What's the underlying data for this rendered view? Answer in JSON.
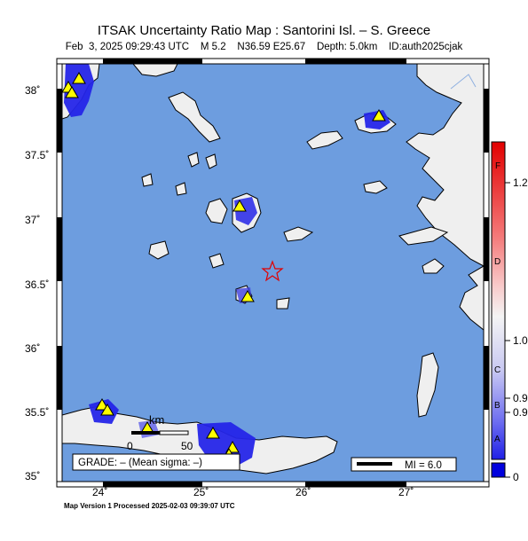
{
  "title": "ITSAK Uncertainty Ratio Map : Santorini Isl. – S. Greece",
  "subtitle": "Feb  3, 2025 09:29:43 UTC    M 5.2    N36.59 E25.67    Depth: 5.0km    ID:auth2025cjak",
  "footer": "Map Version 1 Processed 2025-02-03 09:39:07 UTC",
  "lat_ticks": [
    "38˚",
    "37.5˚",
    "37˚",
    "36.5˚",
    "36˚",
    "35.5˚",
    "35˚"
  ],
  "lon_ticks": [
    "24˚",
    "25˚",
    "26˚",
    "27˚"
  ],
  "grade_box": "GRADE: – (Mean sigma: –)",
  "mi_box": "MI = 6.0",
  "scale_bar": {
    "unit": "km",
    "start": "0",
    "end": "50"
  },
  "colorbar": {
    "letters": [
      "F",
      "D",
      "C",
      "B",
      "A"
    ],
    "values": [
      "1.2",
      "1.0",
      "0.9",
      "0.9",
      "0"
    ]
  },
  "colors": {
    "sea": "#6d9ddf",
    "land": "#efefef",
    "high": "#0000dd",
    "epicenter": "#e00000",
    "station": "#ffff00"
  }
}
